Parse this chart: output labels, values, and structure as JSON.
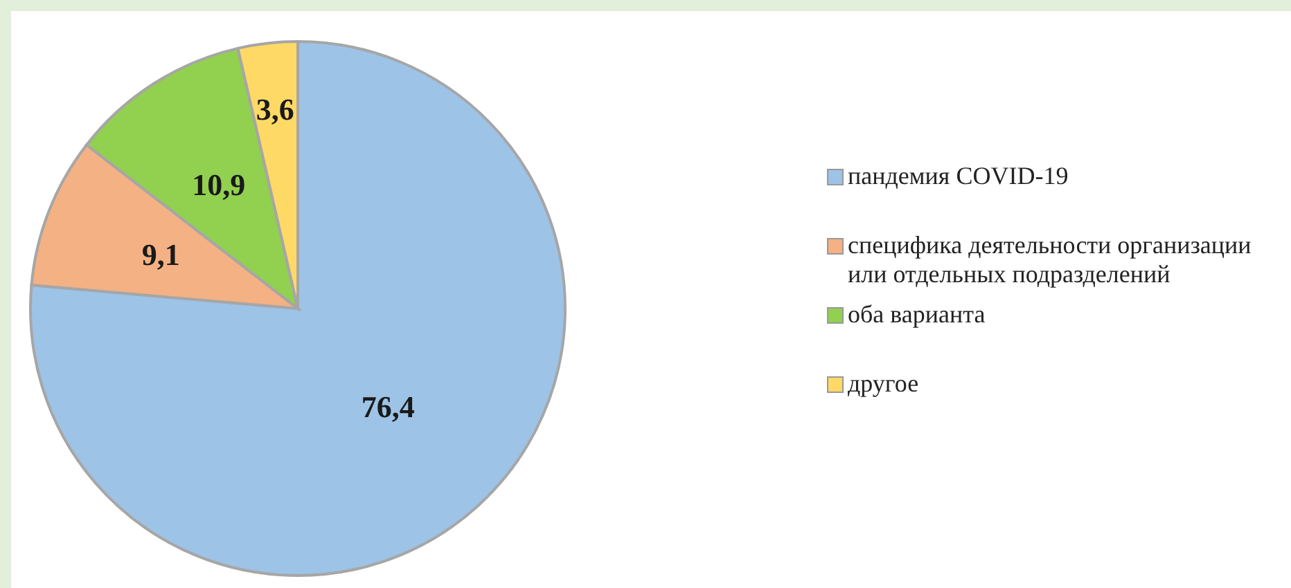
{
  "chart_data": {
    "type": "pie",
    "categories": [
      "пандемия COVID-19",
      "специфика деятельности организации или отдельных подразделений",
      "оба варианта",
      "другое"
    ],
    "values": [
      76.4,
      9.1,
      10.9,
      3.6
    ],
    "value_labels": [
      "76,4",
      "9,1",
      "10,9",
      "3,6"
    ],
    "colors": [
      "#9dc3e6",
      "#f4b183",
      "#92d050",
      "#ffd966"
    ],
    "legend": "right"
  }
}
